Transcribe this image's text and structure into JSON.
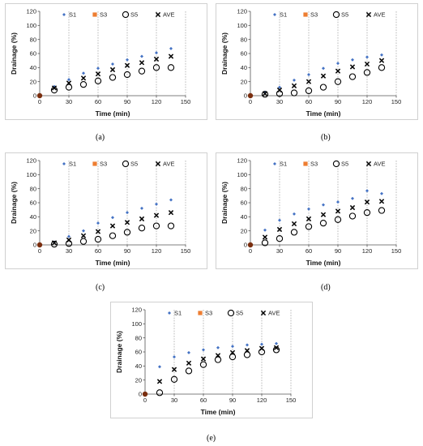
{
  "chart_data": [
    {
      "panel": "(a)",
      "type": "scatter",
      "xlabel": "Time (min)",
      "ylabel": "Drainage (%)",
      "xlim": [
        0,
        150
      ],
      "ylim": [
        0,
        120
      ],
      "xticks": [
        0,
        30,
        60,
        90,
        120,
        150
      ],
      "yticks": [
        0,
        20,
        40,
        60,
        80,
        100,
        120
      ],
      "legend": [
        "S1",
        "S3",
        "S5",
        "AVE"
      ],
      "legend_position": "top",
      "grid": "vertical dashed",
      "series": [
        {
          "name": "S1",
          "x": [
            0,
            15,
            30,
            45,
            60,
            75,
            90,
            105,
            120,
            135
          ],
          "y": [
            0,
            13,
            23,
            32,
            39,
            45,
            51,
            56,
            61,
            67
          ]
        },
        {
          "name": "S3",
          "x": [
            0
          ],
          "y": [
            0
          ]
        },
        {
          "name": "S5",
          "x": [
            0,
            15,
            30,
            45,
            60,
            75,
            90,
            105,
            120,
            135
          ],
          "y": [
            0,
            8,
            12,
            16,
            21,
            26,
            30,
            35,
            40,
            40
          ]
        },
        {
          "name": "AVE",
          "x": [
            0,
            15,
            30,
            45,
            60,
            75,
            90,
            105,
            120,
            135
          ],
          "y": [
            0,
            11,
            18,
            25,
            31,
            37,
            43,
            47,
            52,
            56
          ]
        }
      ]
    },
    {
      "panel": "(b)",
      "type": "scatter",
      "xlabel": "Time (min)",
      "ylabel": "Drainage (%)",
      "xlim": [
        0,
        150
      ],
      "ylim": [
        0,
        120
      ],
      "xticks": [
        0,
        30,
        60,
        90,
        120,
        150
      ],
      "yticks": [
        0,
        20,
        40,
        60,
        80,
        100,
        120
      ],
      "legend": [
        "S1",
        "S3",
        "S5",
        "AVE"
      ],
      "legend_position": "top",
      "grid": "vertical dashed",
      "series": [
        {
          "name": "S1",
          "x": [
            0,
            15,
            30,
            45,
            60,
            75,
            90,
            105,
            120,
            135
          ],
          "y": [
            0,
            5,
            12,
            22,
            30,
            39,
            46,
            51,
            55,
            58
          ]
        },
        {
          "name": "S3",
          "x": [
            0
          ],
          "y": [
            0
          ]
        },
        {
          "name": "S5",
          "x": [
            0,
            15,
            30,
            45,
            60,
            75,
            90,
            105,
            120,
            135
          ],
          "y": [
            0,
            2,
            3,
            4,
            7,
            12,
            20,
            27,
            33,
            40
          ]
        },
        {
          "name": "AVE",
          "x": [
            0,
            15,
            30,
            45,
            60,
            75,
            90,
            105,
            120,
            135
          ],
          "y": [
            0,
            3,
            8,
            14,
            20,
            28,
            35,
            41,
            45,
            50
          ]
        }
      ]
    },
    {
      "panel": "(c)",
      "type": "scatter",
      "xlabel": "Time (min)",
      "ylabel": "Drainage (%)",
      "xlim": [
        0,
        150
      ],
      "ylim": [
        0,
        120
      ],
      "xticks": [
        0,
        30,
        60,
        90,
        120,
        150
      ],
      "yticks": [
        0,
        20,
        40,
        60,
        80,
        100,
        120
      ],
      "legend": [
        "S1",
        "S3",
        "S5",
        "AVE"
      ],
      "legend_position": "top",
      "grid": "vertical dashed",
      "series": [
        {
          "name": "S1",
          "x": [
            0,
            15,
            30,
            45,
            60,
            75,
            90,
            105,
            120,
            135
          ],
          "y": [
            0,
            4,
            12,
            20,
            31,
            39,
            46,
            52,
            58,
            64
          ]
        },
        {
          "name": "S3",
          "x": [
            0
          ],
          "y": [
            0
          ]
        },
        {
          "name": "S5",
          "x": [
            0,
            15,
            30,
            45,
            60,
            75,
            90,
            105,
            120,
            135
          ],
          "y": [
            0,
            1,
            2,
            5,
            8,
            13,
            18,
            24,
            27,
            27
          ]
        },
        {
          "name": "AVE",
          "x": [
            0,
            15,
            30,
            45,
            60,
            75,
            90,
            105,
            120,
            135
          ],
          "y": [
            0,
            3,
            7,
            13,
            19,
            27,
            32,
            37,
            42,
            46
          ]
        }
      ]
    },
    {
      "panel": "(d)",
      "type": "scatter",
      "xlabel": "Time (min)",
      "ylabel": "Drainage (%)",
      "xlim": [
        0,
        150
      ],
      "ylim": [
        0,
        120
      ],
      "xticks": [
        0,
        30,
        60,
        90,
        120,
        150
      ],
      "yticks": [
        0,
        20,
        40,
        60,
        80,
        100,
        120
      ],
      "legend": [
        "S1",
        "S3",
        "S5",
        "AVE"
      ],
      "legend_position": "top",
      "grid": "vertical dashed",
      "series": [
        {
          "name": "S1",
          "x": [
            0,
            15,
            30,
            45,
            60,
            75,
            90,
            105,
            120,
            135
          ],
          "y": [
            0,
            21,
            35,
            44,
            51,
            57,
            61,
            66,
            77,
            73
          ]
        },
        {
          "name": "S3",
          "x": [
            0
          ],
          "y": [
            0
          ]
        },
        {
          "name": "S5",
          "x": [
            0,
            15,
            30,
            45,
            60,
            75,
            90,
            105,
            120,
            135
          ],
          "y": [
            0,
            3,
            9,
            18,
            26,
            31,
            36,
            41,
            46,
            49
          ]
        },
        {
          "name": "AVE",
          "x": [
            0,
            15,
            30,
            45,
            60,
            75,
            90,
            105,
            120,
            135
          ],
          "y": [
            0,
            11,
            22,
            30,
            37,
            43,
            48,
            53,
            61,
            62
          ]
        }
      ]
    },
    {
      "panel": "(e)",
      "type": "scatter",
      "xlabel": "Time (min)",
      "ylabel": "Drainage (%)",
      "xlim": [
        0,
        150
      ],
      "ylim": [
        0,
        120
      ],
      "xticks": [
        0,
        30,
        60,
        90,
        120,
        150
      ],
      "yticks": [
        0,
        20,
        40,
        60,
        80,
        100,
        120
      ],
      "legend": [
        "S1",
        "S3",
        "S5",
        "AVE"
      ],
      "legend_position": "top",
      "grid": "vertical dashed",
      "series": [
        {
          "name": "S1",
          "x": [
            0,
            15,
            30,
            45,
            60,
            75,
            90,
            105,
            120,
            135
          ],
          "y": [
            0,
            39,
            53,
            59,
            63,
            66,
            68,
            70,
            71,
            72
          ]
        },
        {
          "name": "S3",
          "x": [
            0
          ],
          "y": [
            0
          ]
        },
        {
          "name": "S5",
          "x": [
            0,
            15,
            30,
            45,
            60,
            75,
            90,
            105,
            120,
            135
          ],
          "y": [
            0,
            2,
            21,
            33,
            42,
            49,
            53,
            56,
            60,
            63
          ]
        },
        {
          "name": "AVE",
          "x": [
            0,
            15,
            30,
            45,
            60,
            75,
            90,
            105,
            120,
            135
          ],
          "y": [
            0,
            18,
            35,
            44,
            50,
            55,
            59,
            62,
            65,
            66
          ]
        }
      ]
    }
  ],
  "series_style": {
    "S1": {
      "marker": "diamond",
      "color": "#4472c4"
    },
    "S3": {
      "marker": "square",
      "color": "#ed7d31"
    },
    "S5": {
      "marker": "open-circle",
      "color": "#000000"
    },
    "AVE": {
      "marker": "x",
      "color": "#000000"
    }
  },
  "origin_marker_color": "#7a2e0f"
}
